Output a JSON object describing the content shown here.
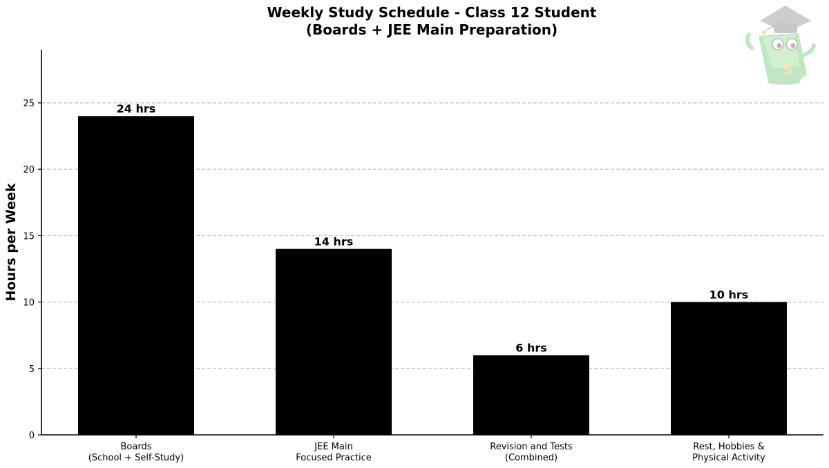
{
  "chart_data": {
    "type": "bar",
    "title_lines": [
      "Weekly Study Schedule - Class 12 Student",
      "(Boards + JEE Main Preparation)"
    ],
    "ylabel": "Hours per Week",
    "xlabel": "",
    "categories": [
      [
        "Boards",
        "(School + Self-Study)"
      ],
      [
        "JEE Main",
        "Focused Practice"
      ],
      [
        "Revision and Tests",
        "(Combined)"
      ],
      [
        "Rest, Hobbies &",
        "Physical Activity"
      ]
    ],
    "values": [
      24,
      14,
      6,
      10
    ],
    "data_labels": [
      "24 hrs",
      "14 hrs",
      "6 hrs",
      "10 hrs"
    ],
    "ylim": [
      0,
      29
    ],
    "yticks": [
      0,
      5,
      10,
      15,
      20,
      25
    ],
    "grid": "horizontal-dashed",
    "bar_color": "#000000",
    "grid_color": "#b0b0b0"
  },
  "logo": {
    "icon": "graduation-mascot-logo",
    "letter": "S"
  }
}
